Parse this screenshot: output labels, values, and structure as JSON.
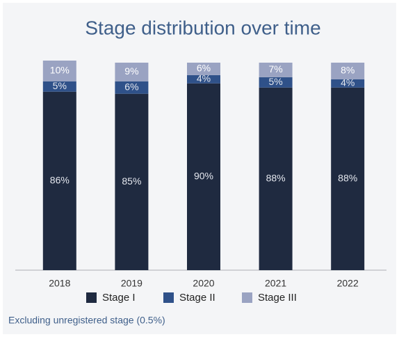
{
  "chart_data": {
    "type": "stacked-bar",
    "title": "Stage distribution over time",
    "categories": [
      "2018",
      "2019",
      "2020",
      "2021",
      "2022"
    ],
    "series": [
      {
        "name": "Stage I",
        "color": "#1f2a40",
        "values": [
          86,
          85,
          90,
          88,
          88
        ],
        "value_labels": [
          "86%",
          "85%",
          "90%",
          "88%",
          "88%"
        ]
      },
      {
        "name": "Stage II",
        "color": "#2f5189",
        "values": [
          5,
          6,
          4,
          5,
          4
        ],
        "value_labels": [
          "5%",
          "6%",
          "4%",
          "5%",
          "4%"
        ]
      },
      {
        "name": "Stage III",
        "color": "#9aa3c2",
        "values": [
          10,
          9,
          6,
          7,
          8
        ],
        "value_labels": [
          "10%",
          "9%",
          "6%",
          "7%",
          "8%"
        ]
      }
    ],
    "footnote": "Excluding unregistered stage (0.5%)"
  }
}
